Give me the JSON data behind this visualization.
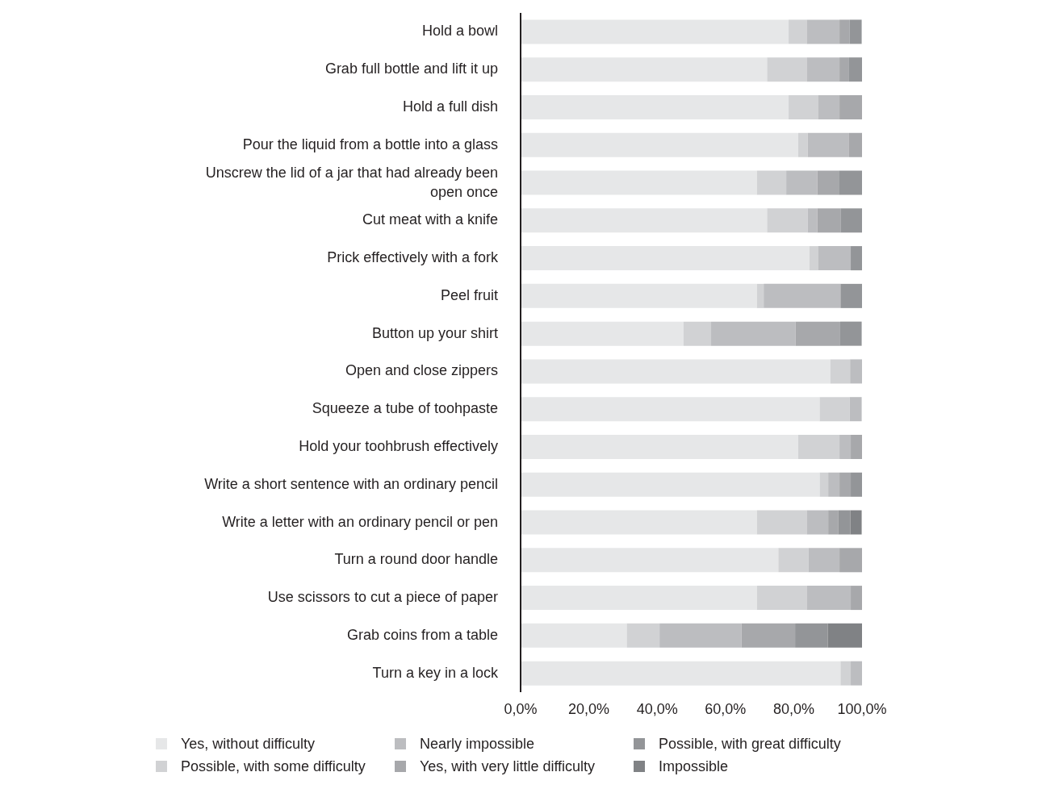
{
  "chart_data": {
    "type": "bar",
    "orientation": "horizontal",
    "stacked": true,
    "categories": [
      "Hold a bowl",
      "Grab full bottle and lift it up",
      "Hold a full dish",
      "Pour the liquid from a bottle into a glass",
      "Unscrew the lid of a jar that had already been open once",
      "Cut meat with a knife",
      "Prick effectively with a fork",
      "Peel fruit",
      "Button up your shirt",
      "Open and close zippers",
      "Squeeze a tube of toohpaste",
      "Hold your toohbrush effectively",
      "Write a short sentence with an ordinary pencil",
      "Write a letter with an ordinary pencil or pen",
      "Turn a round door handle",
      "Use scissors to cut a piece of paper",
      "Grab coins from a table",
      "Turn a key in a lock"
    ],
    "series": [
      {
        "name": "Yes, without difficulty",
        "color": "#e6e7e8",
        "values": [
          78.5,
          72.2,
          78.5,
          81.3,
          69.2,
          72.2,
          84.6,
          69.2,
          47.7,
          90.7,
          87.6,
          81.3,
          87.6,
          69.2,
          75.5,
          69.2,
          31.1,
          93.7
        ]
      },
      {
        "name": "Possible, with some difficulty",
        "color": "#d1d2d4",
        "values": [
          5.3,
          11.6,
          8.6,
          2.8,
          8.6,
          11.9,
          2.5,
          2.0,
          8.1,
          5.8,
          8.8,
          12.1,
          2.5,
          14.6,
          8.8,
          14.6,
          9.6,
          3.0
        ]
      },
      {
        "name": "Nearly impossible",
        "color": "#bcbdc0",
        "values": [
          9.6,
          9.6,
          6.3,
          12.1,
          9.1,
          2.8,
          9.6,
          22.5,
          24.7,
          3.5,
          3.5,
          3.3,
          3.3,
          6.3,
          9.1,
          12.9,
          24.0,
          3.3
        ]
      },
      {
        "name": "Yes, with very little difficulty",
        "color": "#a7a8ab",
        "values": [
          3.0,
          2.8,
          6.6,
          3.8,
          6.3,
          6.8,
          0,
          0,
          13.1,
          0,
          0,
          3.3,
          3.3,
          3.0,
          6.6,
          3.3,
          15.7,
          0
        ]
      },
      {
        "name": "Possible, with great difficulty",
        "color": "#939598",
        "values": [
          3.5,
          3.8,
          0,
          0,
          6.8,
          6.3,
          3.3,
          6.3,
          6.3,
          0,
          0,
          0,
          3.3,
          3.5,
          0,
          0,
          9.6,
          0
        ]
      },
      {
        "name": "Impossible",
        "color": "#808285",
        "values": [
          0,
          0,
          0,
          0,
          0,
          0,
          0,
          0,
          0,
          0,
          0,
          0,
          0,
          3.3,
          0,
          0,
          10.1,
          0
        ]
      }
    ],
    "xlim": [
      0,
      100
    ],
    "xticks": [
      {
        "value": 0,
        "label": "0,0%"
      },
      {
        "value": 20,
        "label": "20,0%"
      },
      {
        "value": 40,
        "label": "40,0%"
      },
      {
        "value": 60,
        "label": "60,0%"
      },
      {
        "value": 80,
        "label": "80,0%"
      },
      {
        "value": 100,
        "label": "100,0%"
      }
    ],
    "grid": false,
    "legend": "bottom"
  }
}
